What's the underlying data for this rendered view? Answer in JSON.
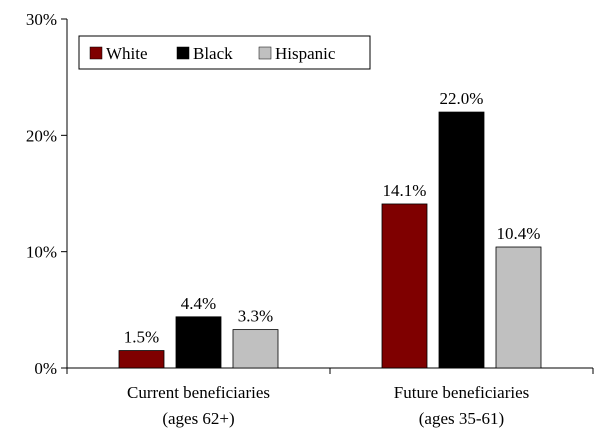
{
  "chart_data": {
    "type": "bar",
    "categories": [
      "Current beneficiaries",
      "Future beneficiaries"
    ],
    "category_sublabels": [
      "(ages 62+)",
      "(ages 35-61)"
    ],
    "series": [
      {
        "name": "White",
        "values": [
          1.5,
          14.1
        ],
        "labels": [
          "1.5%",
          "14.1%"
        ],
        "color": "#7f0000"
      },
      {
        "name": "Black",
        "values": [
          4.4,
          22.0
        ],
        "labels": [
          "4.4%",
          "22.0%"
        ],
        "color": "#000000"
      },
      {
        "name": "Hispanic",
        "values": [
          3.3,
          10.4
        ],
        "labels": [
          "3.3%",
          "10.4%"
        ],
        "color": "#c0c0c0"
      }
    ],
    "ylim": [
      0,
      30
    ],
    "yticks": [
      0,
      10,
      20,
      30
    ],
    "ytick_labels": [
      "0%",
      "10%",
      "20%",
      "30%"
    ],
    "grid": false,
    "legend_position": "top-left",
    "title": "",
    "xlabel": "",
    "ylabel": ""
  }
}
